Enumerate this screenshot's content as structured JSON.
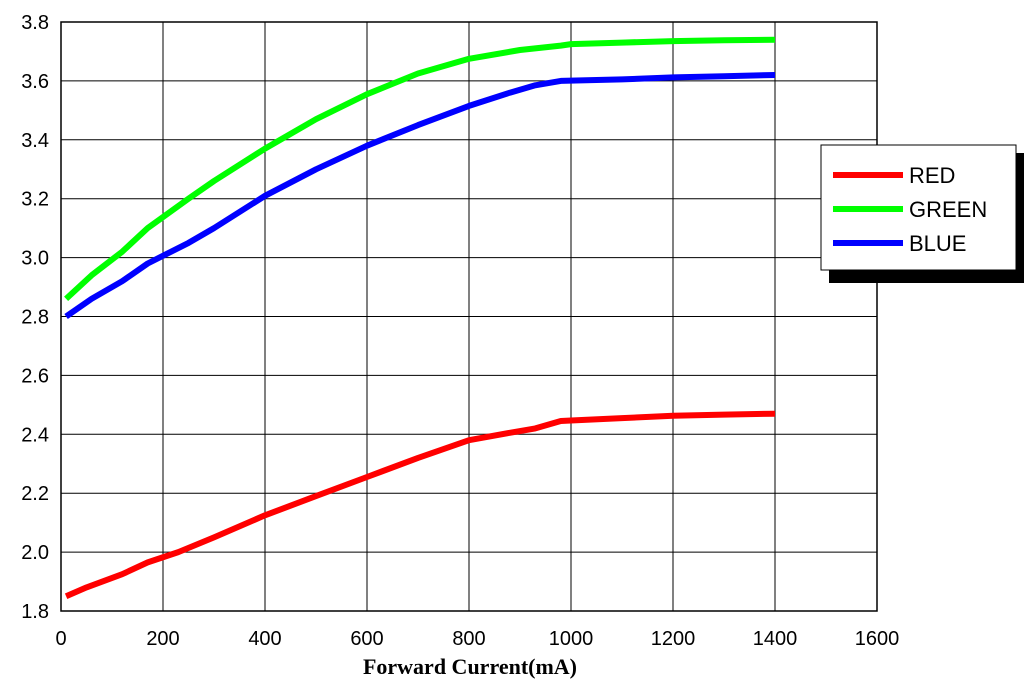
{
  "chart_data": {
    "type": "line",
    "title": "",
    "xlabel": "Forward Current(mA)",
    "ylabel": "",
    "xlim": [
      0,
      1600
    ],
    "ylim": [
      1.8,
      3.8
    ],
    "xticks": [
      "0",
      "200",
      "400",
      "600",
      "800",
      "1000",
      "1200",
      "1400",
      "1600"
    ],
    "yticks": [
      "1.8",
      "2.0",
      "2.2",
      "2.4",
      "2.6",
      "2.8",
      "3.0",
      "3.2",
      "3.4",
      "3.6",
      "3.8"
    ],
    "grid": true,
    "legend_position": "right",
    "series": [
      {
        "name": "RED",
        "color": "#ff0000",
        "x": [
          10,
          50,
          120,
          170,
          230,
          300,
          400,
          500,
          600,
          700,
          800,
          880,
          930,
          980,
          1000,
          1100,
          1200,
          1300,
          1400
        ],
        "y": [
          1.85,
          1.88,
          1.925,
          1.965,
          2.0,
          2.05,
          2.125,
          2.19,
          2.255,
          2.32,
          2.38,
          2.405,
          2.42,
          2.445,
          2.447,
          2.455,
          2.463,
          2.467,
          2.47
        ]
      },
      {
        "name": "GREEN",
        "color": "#00ff00",
        "x": [
          10,
          60,
          120,
          170,
          250,
          300,
          400,
          500,
          600,
          700,
          800,
          900,
          980,
          1000,
          1100,
          1200,
          1300,
          1400
        ],
        "y": [
          2.86,
          2.94,
          3.02,
          3.1,
          3.2,
          3.26,
          3.37,
          3.47,
          3.555,
          3.625,
          3.675,
          3.705,
          3.72,
          3.725,
          3.73,
          3.735,
          3.738,
          3.74
        ]
      },
      {
        "name": "BLUE",
        "color": "#0000ff",
        "x": [
          10,
          60,
          120,
          170,
          250,
          300,
          400,
          500,
          600,
          700,
          800,
          880,
          930,
          980,
          1000,
          1100,
          1200,
          1300,
          1400
        ],
        "y": [
          2.8,
          2.86,
          2.92,
          2.98,
          3.05,
          3.1,
          3.21,
          3.3,
          3.38,
          3.45,
          3.515,
          3.56,
          3.585,
          3.6,
          3.601,
          3.605,
          3.612,
          3.616,
          3.62
        ]
      }
    ]
  }
}
